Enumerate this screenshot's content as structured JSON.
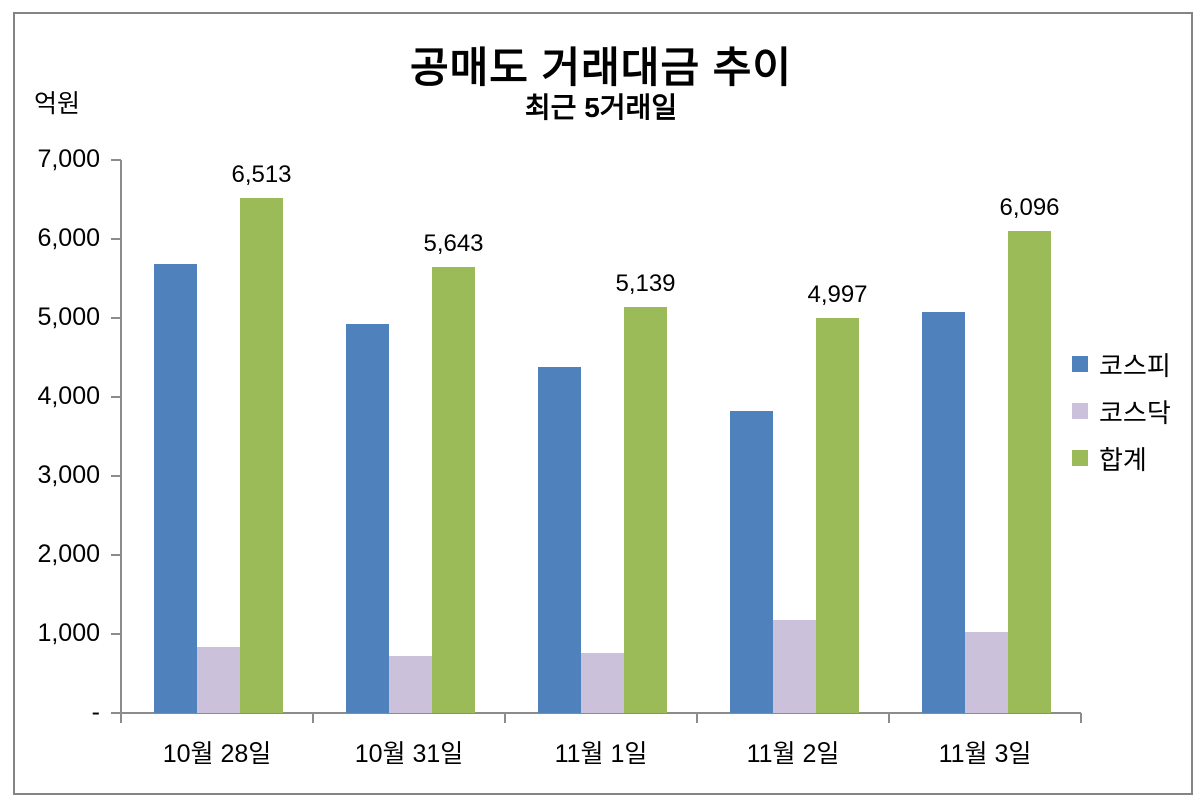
{
  "header": {
    "title": "공매도 거래대금 추이",
    "subtitle": "최근 5거래일",
    "unit_label": "억원"
  },
  "colors": {
    "kospi_blue": "#4F81BD",
    "kosdaq_lavender": "#CCC1DA",
    "total_green": "#9BBB59",
    "axis_gray": "#8C8C8C",
    "border_gray": "#848484",
    "text_black": "#000000"
  },
  "chart_data": {
    "type": "bar",
    "title": "공매도 거래대금 추이",
    "subtitle": "최근 5거래일",
    "ylabel": "억원",
    "categories": [
      "10월 28일",
      "10월 31일",
      "11월 1일",
      "11월 2일",
      "11월 3일"
    ],
    "series": [
      {
        "name": "코스피",
        "color": "#4F81BD",
        "values": [
          5680,
          4920,
          4385,
          3820,
          5075
        ]
      },
      {
        "name": "코스닥",
        "color": "#CCC1DA",
        "values": [
          833,
          723,
          754,
          1177,
          1021
        ]
      },
      {
        "name": "합계",
        "color": "#9BBB59",
        "values": [
          6513,
          5643,
          5139,
          4997,
          6096
        ],
        "data_labels": [
          "6,513",
          "5,643",
          "5,139",
          "4,997",
          "6,096"
        ]
      }
    ],
    "ylim": [
      0,
      7000
    ],
    "ytick_step": 1000,
    "ytick_labels": [
      "-",
      "1,000",
      "2,000",
      "3,000",
      "4,000",
      "5,000",
      "6,000",
      "7,000"
    ],
    "grid": false,
    "legend_position": "right",
    "legend_entries": [
      "코스피",
      "코스닥",
      "합계"
    ]
  }
}
